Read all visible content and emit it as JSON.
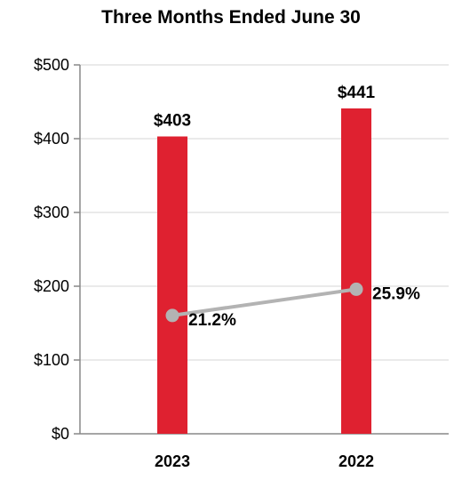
{
  "chart_data": {
    "type": "bar",
    "title": "Three Months Ended June 30",
    "categories": [
      "2023",
      "2022"
    ],
    "ylim": [
      0,
      500
    ],
    "yticks": [
      0,
      100,
      200,
      300,
      400,
      500
    ],
    "ytick_labels": [
      "$0",
      "$100",
      "$200",
      "$300",
      "$400",
      "$500"
    ],
    "grid": true,
    "series": [
      {
        "type": "bar",
        "values": [
          403,
          441
        ],
        "labels": [
          "$403",
          "$441"
        ],
        "color": "#df2130"
      },
      {
        "type": "line",
        "values": [
          21.2,
          25.9
        ],
        "labels": [
          "21.2%",
          "25.9%"
        ],
        "color": "#b3b3b3",
        "unit": "percent"
      }
    ]
  }
}
